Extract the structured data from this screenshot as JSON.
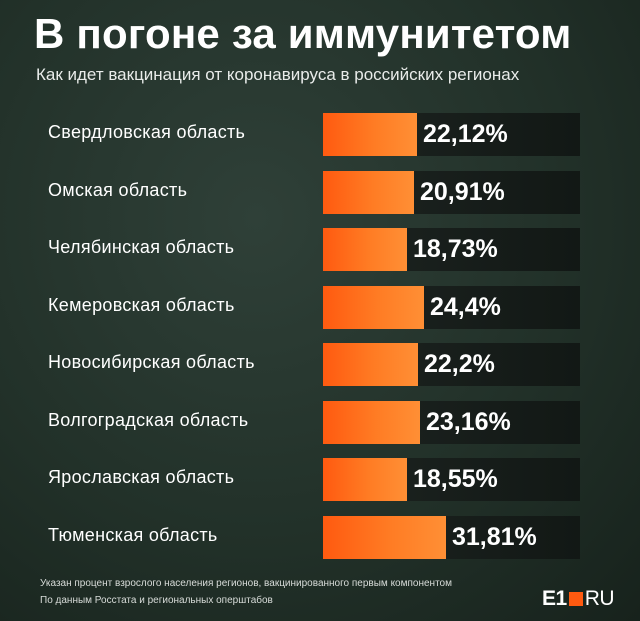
{
  "chart_data": {
    "type": "bar",
    "orientation": "horizontal",
    "title": "В погоне за иммунитетом",
    "subtitle": "Как идет вакцинация от коронавируса в российских регионах",
    "categories": [
      "Свердловская область",
      "Омская область",
      "Челябинская область",
      "Кемеровская область",
      "Новосибирская область",
      "Волгоградская область",
      "Ярославская область",
      "Тюменская область"
    ],
    "values": [
      22.12,
      20.91,
      18.73,
      24.4,
      22.2,
      23.16,
      18.55,
      31.81
    ],
    "value_labels": [
      "22,12%",
      "20,91%",
      "18,73%",
      "24,4%",
      "22,2%",
      "23,16%",
      "18,55%",
      "31,81%"
    ],
    "unit": "%",
    "colors": {
      "bar": "#ff6a1a",
      "track": "#141b17",
      "background": "#223129"
    }
  },
  "footer": {
    "note": "Указан процент взрослого населения регионов, вакцинированного первым компонентом",
    "source": "По данным Росстата и региональных оперштабов"
  },
  "logo": {
    "main": "E1",
    "suffix": "RU"
  }
}
